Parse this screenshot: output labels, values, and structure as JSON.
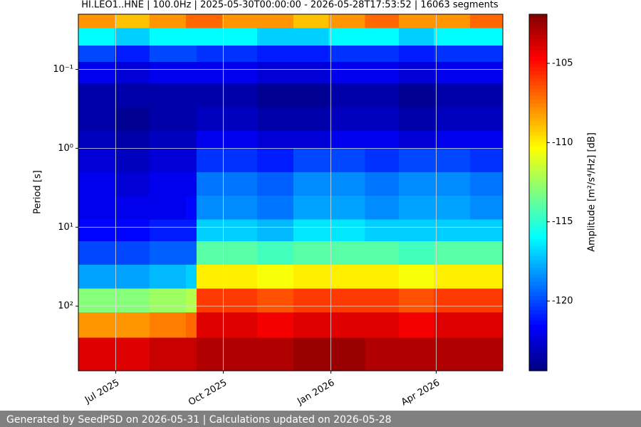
{
  "chart_data": {
    "type": "heatmap",
    "title": "HI.LEO1..HNE | 100.0Hz | 2025-05-30T00:00:00 - 2026-05-28T17:53:52 | 16063 segments",
    "y_label": "Period [s]",
    "colorbar_label": "Amplitude [m²/s⁴/Hz] [dB]",
    "xlim": [
      "2025-05-30",
      "2026-05-28"
    ],
    "xticks": [
      {
        "value": "2025-07-01",
        "label": "Jul 2025"
      },
      {
        "value": "2025-10-01",
        "label": "Oct 2025"
      },
      {
        "value": "2026-01-01",
        "label": "Jan 2026"
      },
      {
        "value": "2026-04-01",
        "label": "Apr 2026"
      }
    ],
    "ylim": [
      0.02,
      660
    ],
    "y_log": true,
    "y_inverted": true,
    "yticks": [
      {
        "value": 0.1,
        "label": "10⁻¹"
      },
      {
        "value": 1,
        "label": "10⁰"
      },
      {
        "value": 10,
        "label": "10¹"
      },
      {
        "value": 100,
        "label": "10²"
      }
    ],
    "grid": true,
    "colormap": "jet",
    "clim": [
      -124.4,
      -101.9
    ],
    "cticks": [
      -105,
      -110,
      -115,
      -120
    ],
    "xbins": [
      "2025-05-30",
      "2025-06-30",
      "2025-07-30",
      "2025-08-30",
      "2025-09-08",
      "2025-09-30",
      "2025-10-30",
      "2025-11-30",
      "2025-12-30",
      "2026-01-30",
      "2026-02-28",
      "2026-03-30",
      "2026-04-30",
      "2026-05-28"
    ],
    "ybins": [
      0.02,
      0.03,
      0.05,
      0.08,
      0.15,
      0.3,
      0.6,
      1,
      2,
      4,
      8,
      15,
      30,
      60,
      120,
      250,
      660
    ],
    "values": [
      [
        -108,
        -109,
        -108,
        -107,
        -107,
        -108,
        -108,
        -109,
        -108,
        -107,
        -108,
        -108,
        -107
      ],
      [
        -116,
        -117,
        -116,
        -116,
        -116,
        -116,
        -117,
        -117,
        -116,
        -116,
        -117,
        -116,
        -116
      ],
      [
        -120,
        -121,
        -120,
        -120,
        -120.5,
        -120.5,
        -121,
        -121,
        -120.5,
        -120.5,
        -121,
        -120.5,
        -120.5
      ],
      [
        -122,
        -122.5,
        -122,
        -122,
        -122,
        -122,
        -122.5,
        -122.5,
        -122,
        -122,
        -122.5,
        -122,
        -122
      ],
      [
        -123.5,
        -123.5,
        -123.5,
        -123.5,
        -123.5,
        -123.5,
        -124,
        -124,
        -123.5,
        -123.5,
        -124,
        -123.5,
        -123.5
      ],
      [
        -123.5,
        -124,
        -123.5,
        -123.5,
        -123,
        -123,
        -123.5,
        -123.5,
        -123,
        -123,
        -123.5,
        -123,
        -123
      ],
      [
        -123,
        -123.5,
        -123,
        -123,
        -122,
        -122,
        -122.5,
        -122.5,
        -122,
        -122,
        -122.5,
        -122,
        -122
      ],
      [
        -122.5,
        -123,
        -122.5,
        -122.5,
        -120.5,
        -120.5,
        -121,
        -120,
        -120,
        -120.5,
        -120,
        -120,
        -120.5
      ],
      [
        -122,
        -122.5,
        -122,
        -122,
        -119,
        -119,
        -119.5,
        -118.5,
        -118.5,
        -119,
        -118.5,
        -118.5,
        -119
      ],
      [
        -122,
        -122,
        -122,
        -121.5,
        -118.5,
        -118.5,
        -119,
        -118,
        -118,
        -118.5,
        -118,
        -118,
        -118.5
      ],
      [
        -121.5,
        -121.5,
        -121,
        -121,
        -117,
        -117,
        -117.5,
        -116.5,
        -116.5,
        -117,
        -117,
        -117,
        -117
      ],
      [
        -120,
        -120,
        -119.5,
        -119.5,
        -114,
        -114,
        -114.5,
        -114,
        -114,
        -114,
        -114.5,
        -114,
        -114
      ],
      [
        -118,
        -118,
        -117.5,
        -117,
        -110,
        -110,
        -110.5,
        -110,
        -110,
        -110,
        -110.5,
        -110,
        -110
      ],
      [
        -113,
        -113,
        -112.5,
        -112,
        -106,
        -106,
        -106.5,
        -106,
        -106,
        -106,
        -106.5,
        -106,
        -106
      ],
      [
        -108,
        -108,
        -107.5,
        -107,
        -104,
        -104,
        -104.5,
        -104,
        -104,
        -104,
        -104.5,
        -104,
        -104
      ],
      [
        -104,
        -104,
        -103.5,
        -103.5,
        -103,
        -103,
        -103,
        -102.5,
        -102.5,
        -103,
        -103,
        -103,
        -103
      ]
    ],
    "footer": "Generated by SeedPSD on 2026-05-31 | Calculations updated on 2026-05-28"
  }
}
